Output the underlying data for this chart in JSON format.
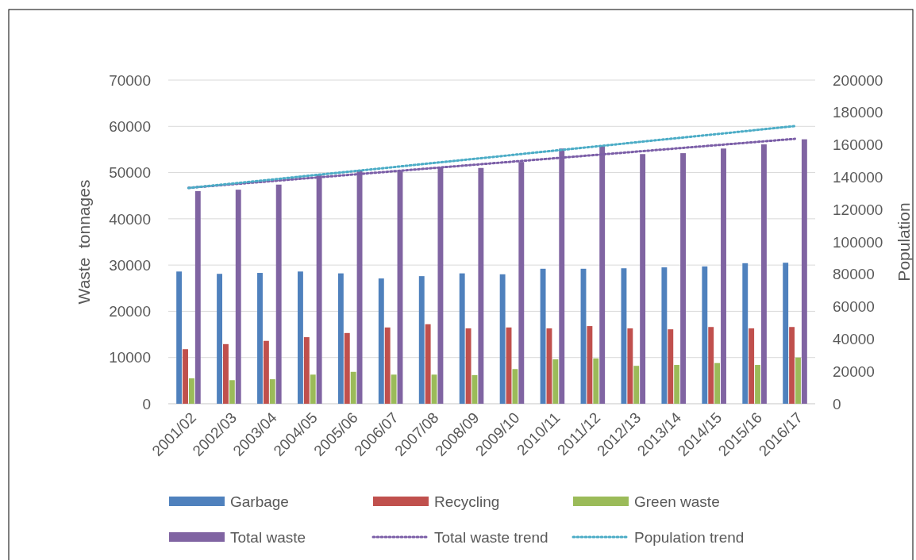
{
  "chart_data": {
    "type": "bar",
    "categories": [
      "2001/02",
      "2002/03",
      "2003/04",
      "2004/05",
      "2005/06",
      "2006/07",
      "2007/08",
      "2008/09",
      "2009/10",
      "2010/11",
      "2011/12",
      "2012/13",
      "2013/14",
      "2014/15",
      "2015/16",
      "2016/17"
    ],
    "series": [
      {
        "name": "Garbage",
        "color": "#4f81bd",
        "values": [
          28600,
          28100,
          28300,
          28600,
          28200,
          27100,
          27600,
          28200,
          28000,
          29200,
          29200,
          29300,
          29500,
          29700,
          30400,
          30500
        ]
      },
      {
        "name": "Recycling",
        "color": "#c0504d",
        "values": [
          11800,
          12900,
          13600,
          14400,
          15300,
          16500,
          17200,
          16300,
          16500,
          16300,
          16800,
          16300,
          16100,
          16600,
          16300,
          16600
        ]
      },
      {
        "name": "Green waste",
        "color": "#9bbb59",
        "values": [
          5500,
          5100,
          5300,
          6300,
          6900,
          6300,
          6300,
          6200,
          7500,
          9600,
          9800,
          8200,
          8400,
          8800,
          8400,
          10000
        ]
      },
      {
        "name": "Total waste",
        "color": "#8064a2",
        "values": [
          46000,
          46300,
          47400,
          49600,
          50600,
          50300,
          51100,
          51000,
          52300,
          55200,
          55800,
          54000,
          54200,
          55200,
          56100,
          57200
        ]
      },
      {
        "name": "Total waste trend",
        "type": "line",
        "color": "#7b5ea7",
        "x": [
          "2001/02",
          "2016/17"
        ],
        "values": [
          46700,
          57300
        ],
        "line_style": "dotted",
        "marker": "none"
      },
      {
        "name": "Population trend",
        "type": "line",
        "axis": "y2",
        "color": "#4bacc6",
        "x": [
          "2001/02",
          "2016/17"
        ],
        "values": [
          133300,
          171600
        ],
        "line_style": "dotted",
        "marker": "none"
      }
    ],
    "ylabel": "Waste  tonnages",
    "y2label": "Population",
    "ylim": [
      0,
      70000
    ],
    "yticks": [
      0,
      10000,
      20000,
      30000,
      40000,
      50000,
      60000,
      70000
    ],
    "y2lim": [
      0,
      200000
    ],
    "y2ticks": [
      0,
      20000,
      40000,
      60000,
      80000,
      100000,
      120000,
      140000,
      160000,
      180000,
      200000
    ],
    "grid": "y",
    "legend": "bottom"
  }
}
